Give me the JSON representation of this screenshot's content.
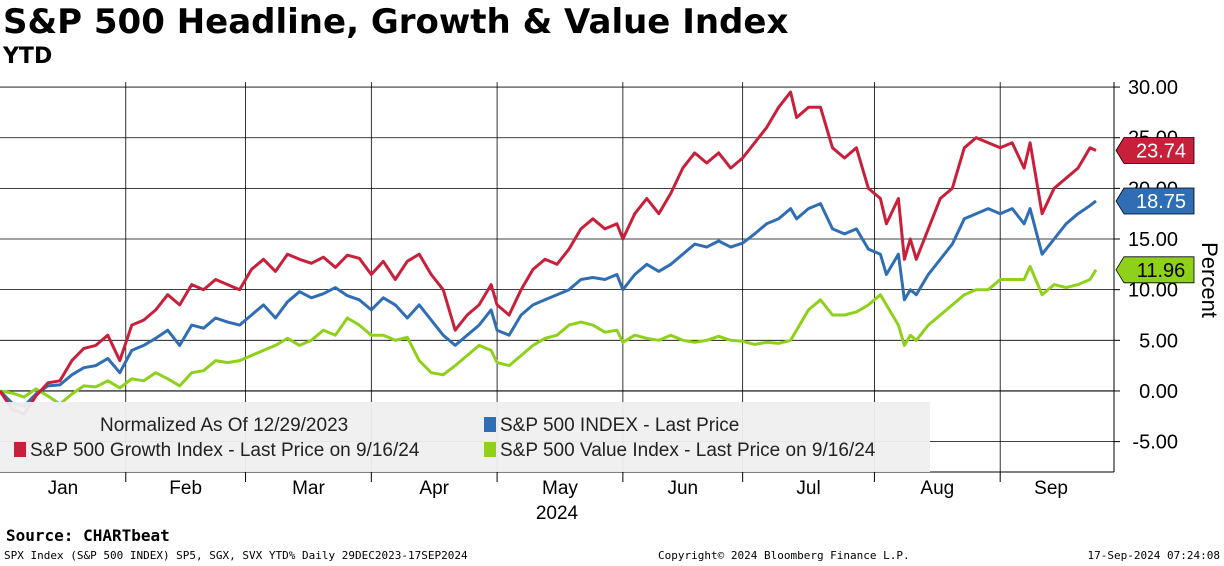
{
  "header": {
    "title": "S&P 500 Headline, Growth & Value Index",
    "subtitle": "YTD"
  },
  "footer": {
    "source": "Source: CHARTbeat",
    "description": "SPX Index (S&P 500 INDEX) SP5, SGX, SVX YTD% Daily 29DEC2023-17SEP2024",
    "copyright": "Copyright© 2024 Bloomberg Finance L.P.",
    "timestamp": "17-Sep-2024 07:24:08"
  },
  "chart_data": {
    "type": "line",
    "title": "S&P 500 Headline, Growth & Value Index",
    "subtitle": "YTD",
    "ylabel": "Percent",
    "xlabel": "2024",
    "ylim": [
      -8,
      30.5
    ],
    "yticks": [
      "30.00",
      "25.00",
      "20.00",
      "15.00",
      "10.00",
      "5.00",
      "0.00",
      "-5.00"
    ],
    "ytick_values": [
      30,
      25,
      20,
      15,
      10,
      5,
      0,
      -5
    ],
    "months": [
      "Jan",
      "Feb",
      "Mar",
      "Apr",
      "May",
      "Jun",
      "Jul",
      "Aug",
      "Sep"
    ],
    "year_label": "2024",
    "x_unit": "trading day index (0 = 29-Dec-2023)",
    "xlim": [
      0,
      178
    ],
    "month_boundaries": [
      21,
      41,
      62,
      83,
      104,
      124,
      146,
      167
    ],
    "legend": {
      "note": "Normalized As Of 12/29/2023",
      "entries": [
        {
          "label": "S&P 500 INDEX - Last Price",
          "color": "#2f6eb5"
        },
        {
          "label": "S&P 500 Growth Index - Last Price on 9/16/24",
          "color": "#c8203a"
        },
        {
          "label": "S&P 500 Value Index - Last Price on 9/16/24",
          "color": "#8fd11a"
        }
      ]
    },
    "series": [
      {
        "name": "S&P 500 Growth Index",
        "color": "#c8203a",
        "last_label": "23.74",
        "last_value": 23.74,
        "points": [
          [
            0,
            0
          ],
          [
            2,
            -1.8
          ],
          [
            4,
            -2.3
          ],
          [
            6,
            -0.5
          ],
          [
            8,
            0.8
          ],
          [
            10,
            1.0
          ],
          [
            12,
            3
          ],
          [
            14,
            4.2
          ],
          [
            16,
            4.5
          ],
          [
            18,
            5.5
          ],
          [
            20,
            3
          ],
          [
            22,
            6.5
          ],
          [
            24,
            7
          ],
          [
            26,
            8
          ],
          [
            28,
            9.5
          ],
          [
            30,
            8.5
          ],
          [
            32,
            10.5
          ],
          [
            34,
            10
          ],
          [
            36,
            11
          ],
          [
            38,
            10.5
          ],
          [
            40,
            10
          ],
          [
            42,
            12
          ],
          [
            44,
            13
          ],
          [
            46,
            11.8
          ],
          [
            48,
            13.5
          ],
          [
            50,
            13
          ],
          [
            52,
            12.6
          ],
          [
            54,
            13.2
          ],
          [
            56,
            12.2
          ],
          [
            58,
            13.4
          ],
          [
            60,
            13.1
          ],
          [
            62,
            11.5
          ],
          [
            64,
            12.8
          ],
          [
            66,
            11
          ],
          [
            68,
            12.8
          ],
          [
            70,
            13.5
          ],
          [
            72,
            11.5
          ],
          [
            74,
            10
          ],
          [
            76,
            6
          ],
          [
            78,
            7.5
          ],
          [
            80,
            8.5
          ],
          [
            82,
            10.5
          ],
          [
            83,
            8.5
          ],
          [
            85,
            7.5
          ],
          [
            87,
            10
          ],
          [
            89,
            12
          ],
          [
            91,
            13
          ],
          [
            93,
            12.5
          ],
          [
            95,
            14
          ],
          [
            97,
            16
          ],
          [
            99,
            17
          ],
          [
            101,
            16
          ],
          [
            103,
            16.5
          ],
          [
            104,
            15
          ],
          [
            106,
            17.5
          ],
          [
            108,
            19
          ],
          [
            110,
            17.5
          ],
          [
            112,
            19.5
          ],
          [
            114,
            22
          ],
          [
            116,
            23.5
          ],
          [
            118,
            22.5
          ],
          [
            120,
            23.5
          ],
          [
            122,
            22
          ],
          [
            124,
            23
          ],
          [
            126,
            24.5
          ],
          [
            128,
            26
          ],
          [
            130,
            28
          ],
          [
            132,
            29.5
          ],
          [
            133,
            27
          ],
          [
            135,
            28
          ],
          [
            137,
            28
          ],
          [
            139,
            24
          ],
          [
            141,
            23
          ],
          [
            143,
            24
          ],
          [
            145,
            20
          ],
          [
            147,
            19
          ],
          [
            148,
            16.5
          ],
          [
            150,
            19
          ],
          [
            151,
            13
          ],
          [
            152,
            15
          ],
          [
            153,
            13
          ],
          [
            155,
            16
          ],
          [
            157,
            19
          ],
          [
            159,
            20
          ],
          [
            161,
            24
          ],
          [
            163,
            25
          ],
          [
            165,
            24.5
          ],
          [
            167,
            24
          ],
          [
            169,
            24.5
          ],
          [
            171,
            22
          ],
          [
            172,
            24.5
          ],
          [
            174,
            17.5
          ],
          [
            176,
            20
          ],
          [
            178,
            21
          ],
          [
            180,
            22
          ],
          [
            182,
            24
          ],
          [
            183,
            23.74
          ]
        ]
      },
      {
        "name": "S&P 500 INDEX",
        "color": "#2f6eb5",
        "last_label": "18.75",
        "last_value": 18.75,
        "points": [
          [
            0,
            0
          ],
          [
            2,
            -1.2
          ],
          [
            4,
            -1.5
          ],
          [
            6,
            -0.3
          ],
          [
            8,
            0.5
          ],
          [
            10,
            0.6
          ],
          [
            12,
            1.6
          ],
          [
            14,
            2.3
          ],
          [
            16,
            2.5
          ],
          [
            18,
            3.2
          ],
          [
            20,
            1.8
          ],
          [
            22,
            4
          ],
          [
            24,
            4.5
          ],
          [
            26,
            5.2
          ],
          [
            28,
            6
          ],
          [
            30,
            4.5
          ],
          [
            32,
            6.5
          ],
          [
            34,
            6.2
          ],
          [
            36,
            7.2
          ],
          [
            38,
            6.8
          ],
          [
            40,
            6.5
          ],
          [
            42,
            7.5
          ],
          [
            44,
            8.5
          ],
          [
            46,
            7.2
          ],
          [
            48,
            8.8
          ],
          [
            50,
            9.8
          ],
          [
            52,
            9.2
          ],
          [
            54,
            9.6
          ],
          [
            56,
            10.2
          ],
          [
            58,
            9.4
          ],
          [
            60,
            9
          ],
          [
            62,
            8
          ],
          [
            64,
            9.2
          ],
          [
            66,
            8.5
          ],
          [
            68,
            7.2
          ],
          [
            70,
            8.5
          ],
          [
            72,
            7
          ],
          [
            74,
            5.5
          ],
          [
            76,
            4.5
          ],
          [
            78,
            5.5
          ],
          [
            80,
            6.5
          ],
          [
            82,
            8
          ],
          [
            83,
            6
          ],
          [
            85,
            5.5
          ],
          [
            87,
            7.5
          ],
          [
            89,
            8.5
          ],
          [
            91,
            9
          ],
          [
            93,
            9.5
          ],
          [
            95,
            10
          ],
          [
            97,
            11
          ],
          [
            99,
            11.2
          ],
          [
            101,
            11
          ],
          [
            103,
            11.5
          ],
          [
            104,
            10
          ],
          [
            106,
            11.5
          ],
          [
            108,
            12.5
          ],
          [
            110,
            11.8
          ],
          [
            112,
            12.5
          ],
          [
            114,
            13.5
          ],
          [
            116,
            14.5
          ],
          [
            118,
            14.2
          ],
          [
            120,
            14.8
          ],
          [
            122,
            14.2
          ],
          [
            124,
            14.6
          ],
          [
            126,
            15.5
          ],
          [
            128,
            16.5
          ],
          [
            130,
            17
          ],
          [
            132,
            18
          ],
          [
            133,
            17
          ],
          [
            135,
            18
          ],
          [
            137,
            18.5
          ],
          [
            139,
            16
          ],
          [
            141,
            15.5
          ],
          [
            143,
            16
          ],
          [
            145,
            14
          ],
          [
            147,
            13.5
          ],
          [
            148,
            11.5
          ],
          [
            150,
            13.5
          ],
          [
            151,
            9
          ],
          [
            152,
            10
          ],
          [
            153,
            9.5
          ],
          [
            155,
            11.5
          ],
          [
            157,
            13
          ],
          [
            159,
            14.5
          ],
          [
            161,
            17
          ],
          [
            163,
            17.5
          ],
          [
            165,
            18
          ],
          [
            167,
            17.5
          ],
          [
            169,
            18
          ],
          [
            171,
            16.5
          ],
          [
            172,
            18
          ],
          [
            174,
            13.5
          ],
          [
            176,
            15
          ],
          [
            178,
            16.5
          ],
          [
            180,
            17.5
          ],
          [
            182,
            18.3
          ],
          [
            183,
            18.75
          ]
        ]
      },
      {
        "name": "S&P 500 Value Index",
        "color": "#8fd11a",
        "last_label": "11.96",
        "last_value": 11.96,
        "points": [
          [
            0,
            0
          ],
          [
            2,
            -0.2
          ],
          [
            4,
            -0.6
          ],
          [
            6,
            0.2
          ],
          [
            8,
            -0.5
          ],
          [
            10,
            -1.3
          ],
          [
            12,
            -0.3
          ],
          [
            14,
            0.5
          ],
          [
            16,
            0.4
          ],
          [
            18,
            1
          ],
          [
            20,
            0.3
          ],
          [
            22,
            1.2
          ],
          [
            24,
            1
          ],
          [
            26,
            1.8
          ],
          [
            28,
            1.2
          ],
          [
            30,
            0.5
          ],
          [
            32,
            1.8
          ],
          [
            34,
            2
          ],
          [
            36,
            3
          ],
          [
            38,
            2.8
          ],
          [
            40,
            3
          ],
          [
            42,
            3.5
          ],
          [
            44,
            4
          ],
          [
            46,
            4.5
          ],
          [
            48,
            5.2
          ],
          [
            50,
            4.5
          ],
          [
            52,
            5
          ],
          [
            54,
            6
          ],
          [
            56,
            5.5
          ],
          [
            58,
            7.2
          ],
          [
            60,
            6.5
          ],
          [
            62,
            5.5
          ],
          [
            64,
            5.5
          ],
          [
            66,
            5
          ],
          [
            68,
            5.3
          ],
          [
            70,
            3
          ],
          [
            72,
            1.8
          ],
          [
            74,
            1.6
          ],
          [
            76,
            2.5
          ],
          [
            78,
            3.5
          ],
          [
            80,
            4.5
          ],
          [
            82,
            4
          ],
          [
            83,
            2.8
          ],
          [
            85,
            2.5
          ],
          [
            87,
            3.5
          ],
          [
            89,
            4.5
          ],
          [
            91,
            5.2
          ],
          [
            93,
            5.5
          ],
          [
            95,
            6.5
          ],
          [
            97,
            6.8
          ],
          [
            99,
            6.5
          ],
          [
            101,
            5.8
          ],
          [
            103,
            6
          ],
          [
            104,
            4.8
          ],
          [
            106,
            5.5
          ],
          [
            108,
            5.2
          ],
          [
            110,
            5
          ],
          [
            112,
            5.5
          ],
          [
            114,
            5
          ],
          [
            116,
            4.8
          ],
          [
            118,
            5
          ],
          [
            120,
            5.4
          ],
          [
            122,
            5
          ],
          [
            124,
            4.9
          ],
          [
            126,
            4.6
          ],
          [
            128,
            4.8
          ],
          [
            130,
            4.7
          ],
          [
            132,
            5
          ],
          [
            133,
            6
          ],
          [
            135,
            8
          ],
          [
            137,
            9
          ],
          [
            139,
            7.5
          ],
          [
            141,
            7.5
          ],
          [
            143,
            7.8
          ],
          [
            145,
            8.5
          ],
          [
            147,
            9.5
          ],
          [
            148,
            8.5
          ],
          [
            150,
            6.5
          ],
          [
            151,
            4.5
          ],
          [
            152,
            5.5
          ],
          [
            153,
            5
          ],
          [
            155,
            6.5
          ],
          [
            157,
            7.5
          ],
          [
            159,
            8.5
          ],
          [
            161,
            9.5
          ],
          [
            163,
            10
          ],
          [
            165,
            10
          ],
          [
            167,
            11
          ],
          [
            169,
            11
          ],
          [
            171,
            11
          ],
          [
            172,
            12.3
          ],
          [
            174,
            9.5
          ],
          [
            176,
            10.5
          ],
          [
            178,
            10.2
          ],
          [
            180,
            10.5
          ],
          [
            182,
            11
          ],
          [
            183,
            11.96
          ]
        ]
      }
    ]
  }
}
